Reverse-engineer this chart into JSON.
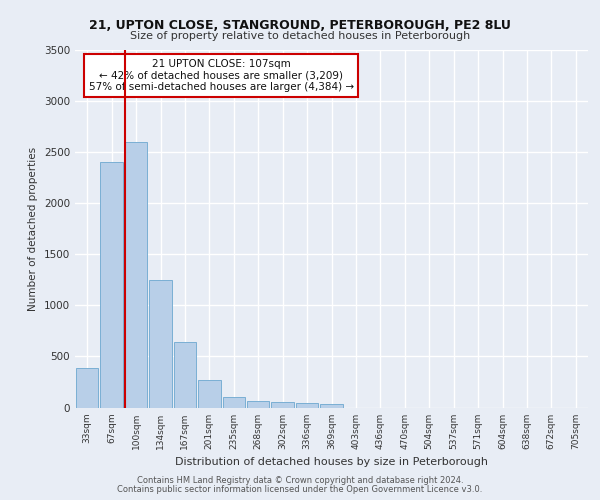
{
  "title_line1": "21, UPTON CLOSE, STANGROUND, PETERBOROUGH, PE2 8LU",
  "title_line2": "Size of property relative to detached houses in Peterborough",
  "xlabel": "Distribution of detached houses by size in Peterborough",
  "ylabel": "Number of detached properties",
  "categories": [
    "33sqm",
    "67sqm",
    "100sqm",
    "134sqm",
    "167sqm",
    "201sqm",
    "235sqm",
    "268sqm",
    "302sqm",
    "336sqm",
    "369sqm",
    "403sqm",
    "436sqm",
    "470sqm",
    "504sqm",
    "537sqm",
    "571sqm",
    "604sqm",
    "638sqm",
    "672sqm",
    "705sqm"
  ],
  "values": [
    390,
    2400,
    2600,
    1250,
    640,
    270,
    100,
    60,
    55,
    45,
    35,
    0,
    0,
    0,
    0,
    0,
    0,
    0,
    0,
    0,
    0
  ],
  "bar_color": "#b8cfe8",
  "bar_edge_color": "#7aafd4",
  "annotation_box_text": "21 UPTON CLOSE: 107sqm\n← 42% of detached houses are smaller (3,209)\n57% of semi-detached houses are larger (4,384) →",
  "annotation_box_color": "#ffffff",
  "annotation_box_edge_color": "#cc0000",
  "vline_x_index": 2,
  "vline_color": "#cc0000",
  "ylim": [
    0,
    3500
  ],
  "yticks": [
    0,
    500,
    1000,
    1500,
    2000,
    2500,
    3000,
    3500
  ],
  "bg_color": "#e8edf5",
  "plot_bg_color": "#e8edf5",
  "grid_color": "#ffffff",
  "footer_line1": "Contains HM Land Registry data © Crown copyright and database right 2024.",
  "footer_line2": "Contains public sector information licensed under the Open Government Licence v3.0."
}
